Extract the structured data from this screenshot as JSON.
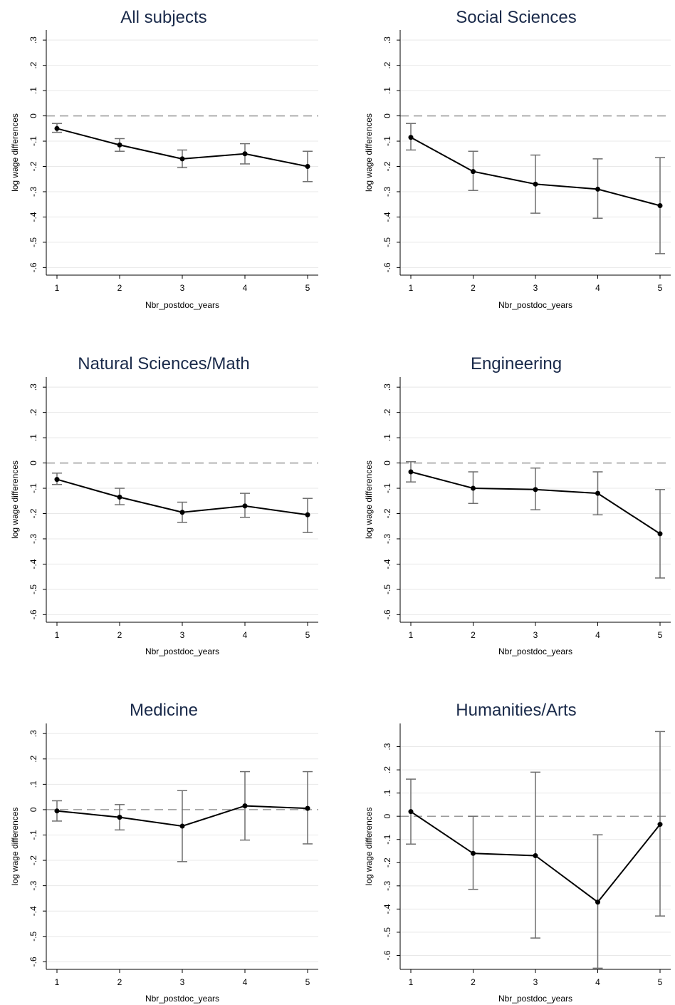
{
  "chart_data": [
    {
      "type": "line",
      "title": "All subjects",
      "xlabel": "Nbr_postdoc_years",
      "ylabel": "log wage differences",
      "x": [
        1,
        2,
        3,
        4,
        5
      ],
      "x_ticks": [
        "1",
        "2",
        "3",
        "4",
        "5"
      ],
      "y_ticks": [
        ".3",
        ".2",
        ".1",
        "0",
        "-.1",
        "-.2",
        "-.3",
        "-.4",
        "-.5",
        "-.6"
      ],
      "ylim": [
        -0.63,
        0.34
      ],
      "reference_line": 0,
      "series": [
        {
          "values": [
            -0.05,
            -0.115,
            -0.17,
            -0.15,
            -0.2
          ],
          "ci_lower": [
            -0.065,
            -0.14,
            -0.205,
            -0.19,
            -0.26
          ],
          "ci_upper": [
            -0.03,
            -0.09,
            -0.135,
            -0.11,
            -0.14
          ]
        }
      ]
    },
    {
      "type": "line",
      "title": "Social Sciences",
      "xlabel": "Nbr_postdoc_years",
      "ylabel": "log wage differences",
      "x": [
        1,
        2,
        3,
        4,
        5
      ],
      "x_ticks": [
        "1",
        "2",
        "3",
        "4",
        "5"
      ],
      "y_ticks": [
        ".3",
        ".2",
        ".1",
        "0",
        "-.1",
        "-.2",
        "-.3",
        "-.4",
        "-.5",
        "-.6"
      ],
      "ylim": [
        -0.63,
        0.34
      ],
      "reference_line": 0,
      "series": [
        {
          "values": [
            -0.085,
            -0.22,
            -0.27,
            -0.29,
            -0.355
          ],
          "ci_lower": [
            -0.135,
            -0.295,
            -0.385,
            -0.405,
            -0.545
          ],
          "ci_upper": [
            -0.03,
            -0.14,
            -0.155,
            -0.17,
            -0.165
          ]
        }
      ]
    },
    {
      "type": "line",
      "title": "Natural Sciences/Math",
      "xlabel": "Nbr_postdoc_years",
      "ylabel": "log wage differences",
      "x": [
        1,
        2,
        3,
        4,
        5
      ],
      "x_ticks": [
        "1",
        "2",
        "3",
        "4",
        "5"
      ],
      "y_ticks": [
        ".3",
        ".2",
        ".1",
        "0",
        "-.1",
        "-.2",
        "-.3",
        "-.4",
        "-.5",
        "-.6"
      ],
      "ylim": [
        -0.63,
        0.34
      ],
      "reference_line": 0,
      "series": [
        {
          "values": [
            -0.065,
            -0.135,
            -0.195,
            -0.17,
            -0.205
          ],
          "ci_lower": [
            -0.085,
            -0.165,
            -0.235,
            -0.215,
            -0.275
          ],
          "ci_upper": [
            -0.04,
            -0.1,
            -0.155,
            -0.12,
            -0.14
          ]
        }
      ]
    },
    {
      "type": "line",
      "title": "Engineering",
      "xlabel": "Nbr_postdoc_years",
      "ylabel": "log wage differences",
      "x": [
        1,
        2,
        3,
        4,
        5
      ],
      "x_ticks": [
        "1",
        "2",
        "3",
        "4",
        "5"
      ],
      "y_ticks": [
        ".3",
        ".2",
        ".1",
        "0",
        "-.1",
        "-.2",
        "-.3",
        "-.4",
        "-.5",
        "-.6"
      ],
      "ylim": [
        -0.63,
        0.34
      ],
      "reference_line": 0,
      "series": [
        {
          "values": [
            -0.035,
            -0.1,
            -0.105,
            -0.12,
            -0.28
          ],
          "ci_lower": [
            -0.075,
            -0.16,
            -0.185,
            -0.205,
            -0.455
          ],
          "ci_upper": [
            0.005,
            -0.035,
            -0.02,
            -0.035,
            -0.105
          ]
        }
      ]
    },
    {
      "type": "line",
      "title": "Medicine",
      "xlabel": "Nbr_postdoc_years",
      "ylabel": "log wage differences",
      "x": [
        1,
        2,
        3,
        4,
        5
      ],
      "x_ticks": [
        "1",
        "2",
        "3",
        "4",
        "5"
      ],
      "y_ticks": [
        ".3",
        ".2",
        ".1",
        "0",
        "-.1",
        "-.2",
        "-.3",
        "-.4",
        "-.5",
        "-.6"
      ],
      "ylim": [
        -0.63,
        0.34
      ],
      "reference_line": 0,
      "series": [
        {
          "values": [
            -0.005,
            -0.03,
            -0.065,
            0.015,
            0.005
          ],
          "ci_lower": [
            -0.045,
            -0.08,
            -0.205,
            -0.12,
            -0.135
          ],
          "ci_upper": [
            0.035,
            0.02,
            0.075,
            0.15,
            0.15
          ]
        }
      ]
    },
    {
      "type": "line",
      "title": "Humanities/Arts",
      "xlabel": "Nbr_postdoc_years",
      "ylabel": "log wage differences",
      "x": [
        1,
        2,
        3,
        4,
        5
      ],
      "x_ticks": [
        "1",
        "2",
        "3",
        "4",
        "5"
      ],
      "y_ticks": [
        ".3",
        ".2",
        ".1",
        "0",
        "-.1",
        "-.2",
        "-.3",
        "-.4",
        "-.5",
        "-.6"
      ],
      "ylim": [
        -0.66,
        0.4
      ],
      "reference_line": 0,
      "series": [
        {
          "values": [
            0.02,
            -0.16,
            -0.17,
            -0.37,
            -0.035
          ],
          "ci_lower": [
            -0.12,
            -0.315,
            -0.525,
            -0.655,
            -0.43
          ],
          "ci_upper": [
            0.16,
            0.0,
            0.19,
            -0.08,
            0.365
          ]
        }
      ]
    }
  ]
}
